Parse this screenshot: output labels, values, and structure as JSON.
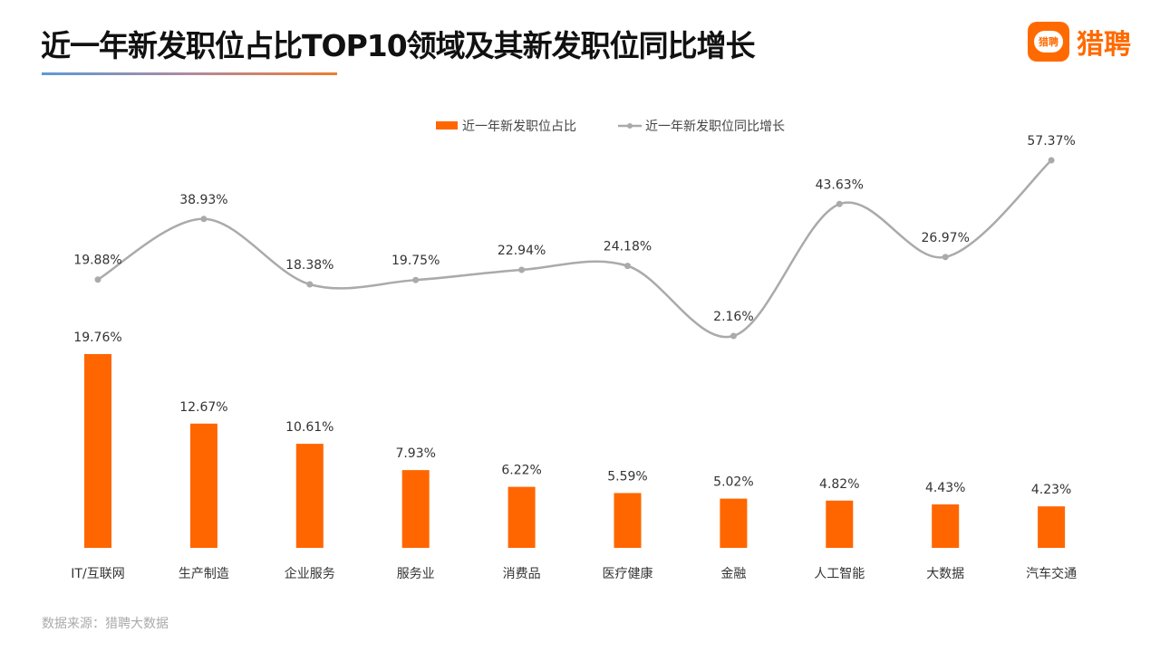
{
  "title": "近一年新发职位占比TOP10领域及其新发职位同比增长",
  "logo": {
    "badge": "猎聘",
    "text": "猎聘",
    "color": "#ff6a00"
  },
  "source": "数据来源：猎聘大数据",
  "chart_data": {
    "type": "bar+line",
    "categories": [
      "IT/互联网",
      "生产制造",
      "企业服务",
      "服务业",
      "消费品",
      "医疗健康",
      "金融",
      "人工智能",
      "大数据",
      "汽车交通"
    ],
    "series": [
      {
        "name": "近一年新发职位占比",
        "type": "bar",
        "color": "#ff6600",
        "values": [
          19.76,
          12.67,
          10.61,
          7.93,
          6.22,
          5.59,
          5.02,
          4.82,
          4.43,
          4.23
        ],
        "labels": [
          "19.76%",
          "12.67%",
          "10.61%",
          "7.93%",
          "6.22%",
          "5.59%",
          "5.02%",
          "4.82%",
          "4.43%",
          "4.23%"
        ]
      },
      {
        "name": "近一年新发职位同比增长",
        "type": "line",
        "smooth": true,
        "color": "#aaaaaa",
        "values": [
          19.88,
          38.93,
          18.38,
          19.75,
          22.94,
          24.18,
          2.16,
          43.63,
          26.97,
          57.37
        ],
        "labels": [
          "19.88%",
          "38.93%",
          "18.38%",
          "19.75%",
          "22.94%",
          "24.18%",
          "2.16%",
          "43.63%",
          "26.97%",
          "57.37%"
        ]
      }
    ],
    "legend": "top-center",
    "grid": false,
    "unit": "%"
  }
}
